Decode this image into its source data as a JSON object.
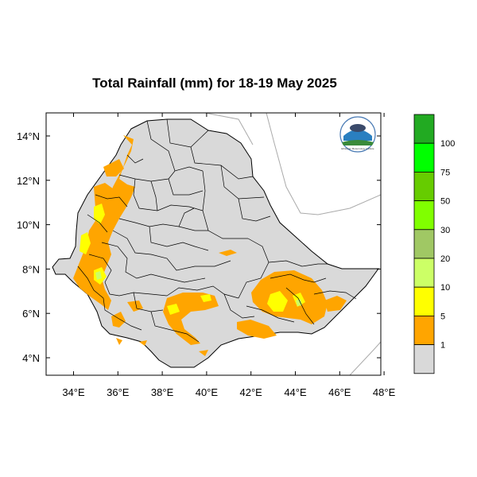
{
  "title": "Total Rainfall (mm) for 18-19 May 2025",
  "map": {
    "lon_ticks": [
      "34°E",
      "36°E",
      "38°E",
      "40°E",
      "42°E",
      "44°E",
      "46°E",
      "48°E"
    ],
    "lat_ticks": [
      "14°N",
      "12°N",
      "10°N",
      "8°N",
      "6°N",
      "4°N"
    ],
    "lon_range": [
      33,
      48.2
    ],
    "lat_range": [
      3.2,
      14.9
    ]
  },
  "legend": {
    "colors": [
      "#d9d9d9",
      "#ffa500",
      "#ffff00",
      "#ccff66",
      "#a0c864",
      "#80ff00",
      "#66cc00",
      "#00ff00",
      "#22aa22"
    ],
    "labels": [
      "1",
      "5",
      "10",
      "20",
      "30",
      "50",
      "75",
      "100"
    ]
  },
  "colors": {
    "land": "#d9d9d9",
    "orange": "#ffa500",
    "yellow": "#ffff00",
    "lightgreen": "#ccff66"
  },
  "logo": {
    "text": "Ethiopian Meteorology Institute"
  }
}
